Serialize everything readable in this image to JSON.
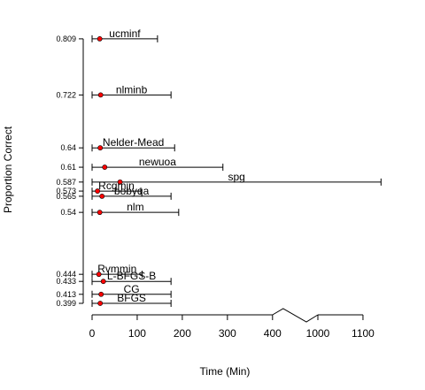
{
  "chart_data": {
    "type": "scatter",
    "title": "",
    "xlabel": "Time (Min)",
    "ylabel": "Proportion Correct",
    "x_ticks": [
      0,
      100,
      200,
      300,
      400,
      1000,
      1100
    ],
    "x_tick_labels": [
      "0",
      "100",
      "200",
      "300",
      "400",
      "1000",
      "1100"
    ],
    "axis_break": [
      400,
      1000
    ],
    "point_color": "#ff0000",
    "methods": [
      {
        "name": "ucminf",
        "y": 0.809,
        "y_label": "0.809",
        "x_min": 0,
        "x_point": 17,
        "x_max": 145
      },
      {
        "name": "nlminb",
        "y": 0.722,
        "y_label": "0.722",
        "x_min": 0,
        "x_point": 19,
        "x_max": 175
      },
      {
        "name": "Nelder-Mead",
        "y": 0.64,
        "y_label": "0.64",
        "x_min": 0,
        "x_point": 18,
        "x_max": 183
      },
      {
        "name": "newuoa",
        "y": 0.61,
        "y_label": "0.61",
        "x_min": 0,
        "x_point": 28,
        "x_max": 290
      },
      {
        "name": "spg",
        "y": 0.587,
        "y_label": "0.587",
        "x_min": 0,
        "x_point": 62,
        "x_max": 1140
      },
      {
        "name": "Rcgmin",
        "y": 0.573,
        "y_label": "0.573",
        "x_min": 0,
        "x_point": 12,
        "x_max": 108
      },
      {
        "name": "bobyqa",
        "y": 0.565,
        "y_label": "0.565",
        "x_min": 0,
        "x_point": 22,
        "x_max": 175
      },
      {
        "name": "nlm",
        "y": 0.54,
        "y_label": "0.54",
        "x_min": 0,
        "x_point": 17,
        "x_max": 192
      },
      {
        "name": "Rvmmin",
        "y": 0.444,
        "y_label": "0.444",
        "x_min": 0,
        "x_point": 15,
        "x_max": 111
      },
      {
        "name": "L-BFGS-B",
        "y": 0.433,
        "y_label": "0.433",
        "x_min": 0,
        "x_point": 25,
        "x_max": 175
      },
      {
        "name": "CG",
        "y": 0.413,
        "y_label": "0.413",
        "x_min": 0,
        "x_point": 20,
        "x_max": 175
      },
      {
        "name": "BFGS",
        "y": 0.399,
        "y_label": "0.399",
        "x_min": 0,
        "x_point": 18,
        "x_max": 175
      }
    ]
  }
}
